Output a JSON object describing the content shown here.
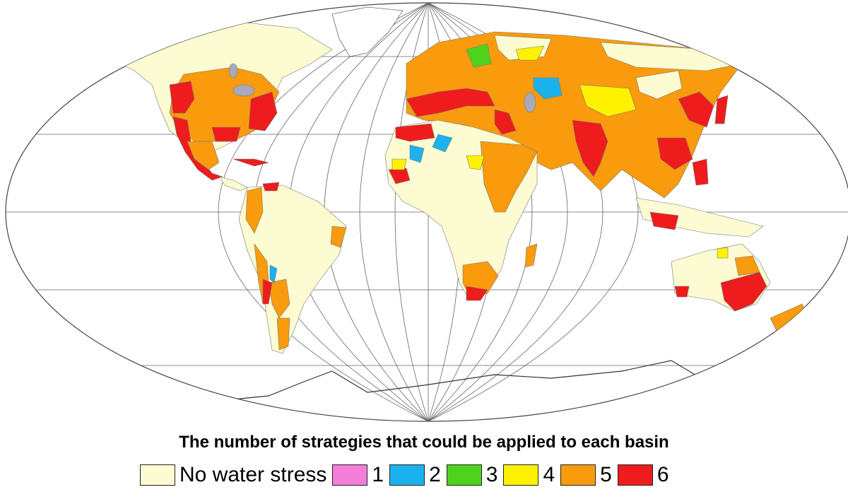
{
  "title": "The number of strategies that could be applied to each basin",
  "legend": [
    {
      "label": "No water stress",
      "color": "#fdfbd2"
    },
    {
      "label": "1",
      "color": "#f57fd8"
    },
    {
      "label": "2",
      "color": "#1bb2ee"
    },
    {
      "label": "3",
      "color": "#4fd21a"
    },
    {
      "label": "4",
      "color": "#fff200"
    },
    {
      "label": "5",
      "color": "#f99b0c"
    },
    {
      "label": "6",
      "color": "#ee1c1c"
    }
  ],
  "colors": {
    "land": "#fdfbd2",
    "lake": "#a9a9b9",
    "graticule": "#555555",
    "greenland": "#ffffff"
  }
}
